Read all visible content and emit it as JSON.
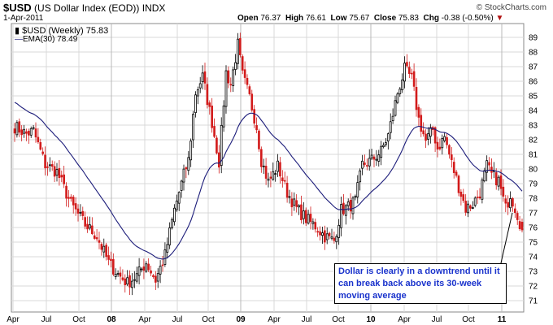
{
  "header": {
    "symbol": "$USD",
    "name": "(US Dollar Index (EOD))",
    "exchange": "INDX",
    "watermark": "© StockCharts.com",
    "date": "1-Apr-2011",
    "open_label": "Open",
    "open": "76.37",
    "high_label": "High",
    "high": "76.61",
    "low_label": "Low",
    "low": "75.67",
    "close_label": "Close",
    "close": "75.83",
    "chg_label": "Chg",
    "chg": "-0.38 (-0.50%)"
  },
  "legend": {
    "price": "$USD (Weekly) 75.83",
    "ema": "EMA(30) 78.49"
  },
  "annotation": "Dollar is clearly in a downtrend until it can break back above its 30-week moving average",
  "colors": {
    "up": "#000000",
    "down": "#d21a1a",
    "ema": "#1c1c7a",
    "grid": "#d9d9d9",
    "annotation_text": "#1a33cc"
  },
  "chart_data": {
    "type": "candlestick",
    "title": "$USD (US Dollar Index (EOD))",
    "period": "Weekly",
    "x_tick_labels": [
      "Apr",
      "Jul",
      "Oct",
      "08",
      "Apr",
      "Jul",
      "Oct",
      "09",
      "Apr",
      "Jul",
      "Oct",
      "10",
      "Apr",
      "Jul",
      "Oct",
      "11"
    ],
    "y_tick_labels": [
      "71",
      "72",
      "73",
      "74",
      "75",
      "76",
      "77",
      "78",
      "79",
      "80",
      "81",
      "82",
      "83",
      "84",
      "85",
      "86",
      "87",
      "88",
      "89"
    ],
    "ylim": [
      70.6,
      89.6
    ],
    "grid": true,
    "legend_position": "top-left",
    "price_anchors": [
      [
        0,
        82.9
      ],
      [
        5,
        82.4
      ],
      [
        8,
        82.6
      ],
      [
        13,
        80.3
      ],
      [
        18,
        79.8
      ],
      [
        24,
        77.6
      ],
      [
        30,
        76.2
      ],
      [
        35,
        75.4
      ],
      [
        40,
        73.6
      ],
      [
        44,
        72.8
      ],
      [
        48,
        72.2
      ],
      [
        52,
        72.7
      ],
      [
        56,
        73.6
      ],
      [
        60,
        72.4
      ],
      [
        64,
        74.1
      ],
      [
        68,
        77.2
      ],
      [
        72,
        79.6
      ],
      [
        74,
        80.6
      ],
      [
        77,
        85.2
      ],
      [
        80,
        86.3
      ],
      [
        84,
        83.2
      ],
      [
        87,
        80.5
      ],
      [
        90,
        86.6
      ],
      [
        92,
        85.8
      ],
      [
        95,
        88.5
      ],
      [
        97,
        86.4
      ],
      [
        100,
        84.9
      ],
      [
        103,
        82.9
      ],
      [
        105,
        80.6
      ],
      [
        108,
        79.1
      ],
      [
        112,
        80.2
      ],
      [
        116,
        78.4
      ],
      [
        120,
        77.3
      ],
      [
        124,
        76.6
      ],
      [
        128,
        76.1
      ],
      [
        132,
        75.4
      ],
      [
        136,
        75.1
      ],
      [
        139,
        77.2
      ],
      [
        142,
        77.4
      ],
      [
        145,
        77.8
      ],
      [
        148,
        80.3
      ],
      [
        152,
        80.6
      ],
      [
        156,
        81.2
      ],
      [
        159,
        82.3
      ],
      [
        163,
        85.2
      ],
      [
        166,
        86.8
      ],
      [
        169,
        86.2
      ],
      [
        172,
        83.4
      ],
      [
        175,
        81.9
      ],
      [
        178,
        82.7
      ],
      [
        180,
        81.4
      ],
      [
        183,
        82.2
      ],
      [
        186,
        80.4
      ],
      [
        189,
        78.8
      ],
      [
        192,
        77.3
      ],
      [
        195,
        77.6
      ],
      [
        198,
        78.4
      ],
      [
        201,
        80.2
      ],
      [
        203,
        79.6
      ],
      [
        206,
        79.2
      ],
      [
        209,
        77.3
      ],
      [
        211,
        78.3
      ],
      [
        214,
        76.9
      ],
      [
        216,
        75.8
      ]
    ],
    "n_weeks": 217,
    "ema_period": 30,
    "ema_last": 78.49,
    "last": {
      "open": 76.37,
      "high": 76.61,
      "low": 75.67,
      "close": 75.83,
      "change": -0.38,
      "change_pct": -0.5
    }
  }
}
